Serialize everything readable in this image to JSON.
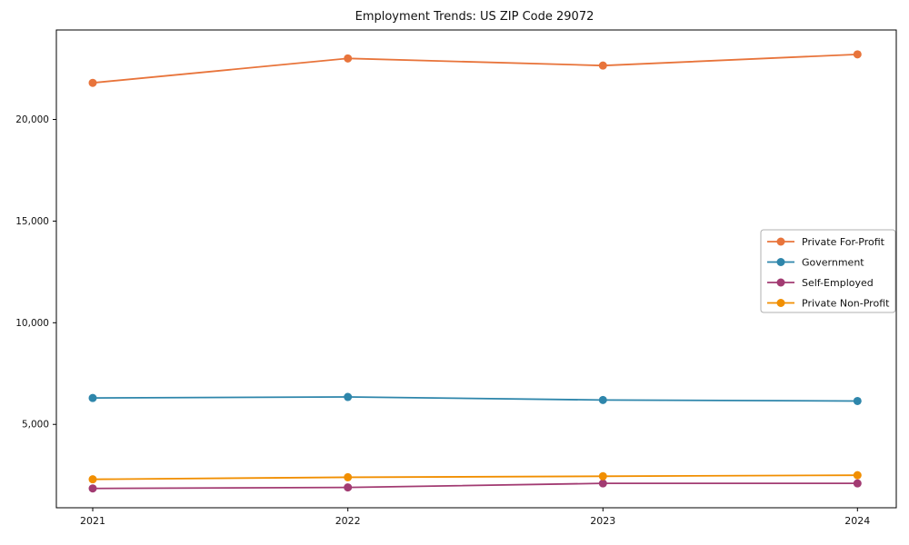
{
  "page": {
    "background": "#ffffff"
  },
  "chart_data": {
    "type": "line",
    "title": "Employment Trends: US ZIP Code 29072",
    "xlabel": "",
    "ylabel": "",
    "x": [
      2021,
      2022,
      2023,
      2024
    ],
    "x_tick_labels": [
      "2021",
      "2022",
      "2023",
      "2024"
    ],
    "series": [
      {
        "name": "Private For-Profit",
        "color": "#E8743B",
        "values": [
          21800,
          23000,
          22650,
          23200
        ]
      },
      {
        "name": "Government",
        "color": "#2E86AB",
        "values": [
          6300,
          6350,
          6200,
          6150
        ]
      },
      {
        "name": "Self-Employed",
        "color": "#A23B72",
        "values": [
          1850,
          1900,
          2100,
          2100
        ]
      },
      {
        "name": "Private Non-Profit",
        "color": "#F18F01",
        "values": [
          2300,
          2400,
          2450,
          2500
        ]
      }
    ],
    "yticks": [
      {
        "value": 5000,
        "label": "5,000"
      },
      {
        "value": 10000,
        "label": "10,000"
      },
      {
        "value": 15000,
        "label": "15,000"
      },
      {
        "value": 20000,
        "label": "20,000"
      }
    ],
    "ylim": [
      900,
      24400
    ],
    "grid": false,
    "legend_position": "center right",
    "axis_color": "#000000",
    "legend_border_color": "#b0b0b0"
  }
}
